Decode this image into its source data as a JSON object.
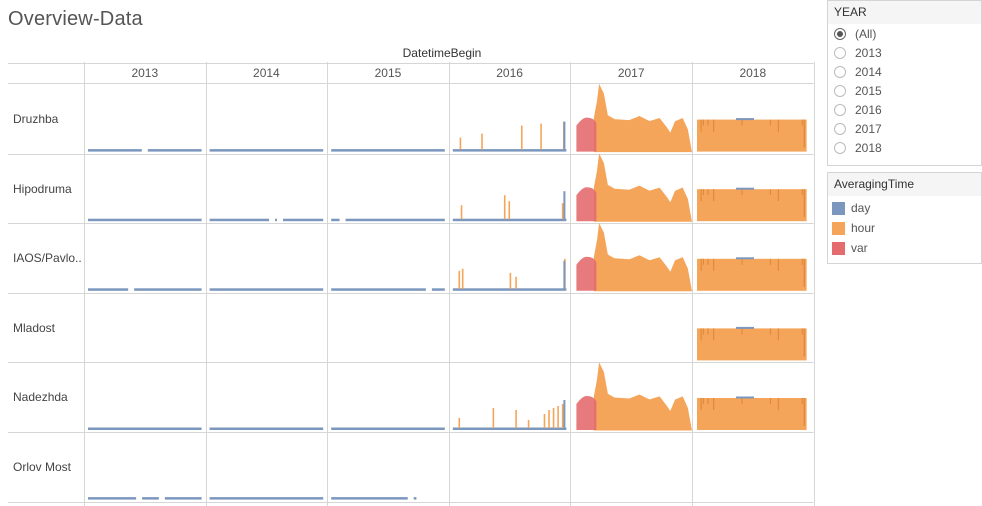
{
  "title": "Overview-Data",
  "column_field": "DatetimeBegin",
  "colors": {
    "day": "#7b97bd",
    "hour": "#f5a55a",
    "var": "#e46c6e"
  },
  "chart_data": {
    "type": "area",
    "title": "Overview-Data",
    "column_field": "DatetimeBegin",
    "years": [
      "2013",
      "2014",
      "2015",
      "2016",
      "2017",
      "2018"
    ],
    "stations": [
      "Druzhba",
      "Hipodruma",
      "IAOS/Pavlo..",
      "Mladost",
      "Nadezhda",
      "Orlov Most"
    ],
    "series": [
      {
        "name": "day",
        "availability": {
          "Druzhba": [
            "2013",
            "2014",
            "2015",
            "2016"
          ],
          "Hipodruma": [
            "2013",
            "2014",
            "2015",
            "2016"
          ],
          "IAOS/Pavlo..": [
            "2013",
            "2014",
            "2015",
            "2016"
          ],
          "Mladost": [
            "2018"
          ],
          "Nadezhda": [
            "2013",
            "2014",
            "2015",
            "2016"
          ],
          "Orlov Most": [
            "2013",
            "2014",
            "2015"
          ]
        }
      },
      {
        "name": "hour",
        "availability": {
          "Druzhba": [
            "2016",
            "2017",
            "2018"
          ],
          "Hipodruma": [
            "2016",
            "2017",
            "2018"
          ],
          "IAOS/Pavlo..": [
            "2016",
            "2017",
            "2018"
          ],
          "Mladost": [
            "2018"
          ],
          "Nadezhda": [
            "2016",
            "2017",
            "2018"
          ],
          "Orlov Most": []
        }
      },
      {
        "name": "var",
        "availability": {
          "Druzhba": [
            "2017"
          ],
          "Hipodruma": [
            "2017"
          ],
          "IAOS/Pavlo..": [
            "2017"
          ],
          "Mladost": [],
          "Nadezhda": [
            "2017"
          ],
          "Orlov Most": []
        }
      }
    ],
    "grid": true
  },
  "filter": {
    "title": "YEAR",
    "options": [
      "(All)",
      "2013",
      "2014",
      "2015",
      "2016",
      "2017",
      "2018"
    ],
    "selected": "(All)"
  },
  "legend": {
    "title": "AveragingTime",
    "items": [
      {
        "label": "day",
        "color": "#7b97bd"
      },
      {
        "label": "hour",
        "color": "#f5a55a"
      },
      {
        "label": "var",
        "color": "#e46c6e"
      }
    ]
  }
}
